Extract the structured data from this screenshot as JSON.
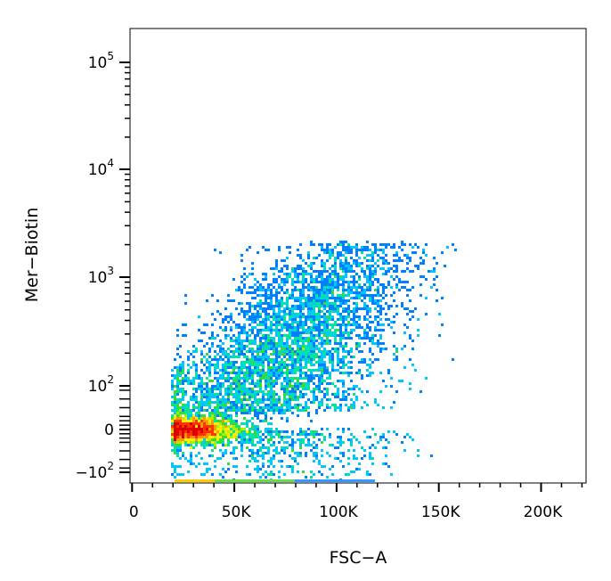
{
  "chart_data": {
    "type": "scatter",
    "style": "density-dot-plot",
    "xlabel": "FSC−A",
    "ylabel": "Mer−Biotin",
    "x_scale": "linear",
    "y_scale": "biexponential",
    "xlim": [
      -1000,
      222000
    ],
    "ylim": [
      -150,
      200000
    ],
    "x_ticks": [
      {
        "value": 0,
        "label": "0"
      },
      {
        "value": 50000,
        "label": "50K"
      },
      {
        "value": 100000,
        "label": "100K"
      },
      {
        "value": 150000,
        "label": "150K"
      },
      {
        "value": 200000,
        "label": "200K"
      }
    ],
    "y_ticks": [
      {
        "value": -100,
        "label": "−10",
        "sup": "2"
      },
      {
        "value": 0,
        "label": "0",
        "sup": ""
      },
      {
        "value": 100,
        "label": "10",
        "sup": "2"
      },
      {
        "value": 1000,
        "label": "10",
        "sup": "3"
      },
      {
        "value": 10000,
        "label": "10",
        "sup": "4"
      },
      {
        "value": 100000,
        "label": "10",
        "sup": "5"
      }
    ],
    "grid": false,
    "legend": "none",
    "colormap": [
      "#0000ff",
      "#0080ff",
      "#00c8ff",
      "#00e6a0",
      "#33dd33",
      "#aaee00",
      "#ffee00",
      "#ff9900",
      "#ff3300",
      "#dd0000"
    ],
    "populations": [
      {
        "x_center": 30000,
        "y_center": 0,
        "x_spread": 15000,
        "y_spread": 15,
        "density": "high",
        "count": 4500
      },
      {
        "x_center": 85000,
        "y_center": 250,
        "x_spread": 28000,
        "y_spread": 300,
        "density": "medium",
        "count": 3500
      },
      {
        "x_center": 65000,
        "y_center": 40,
        "x_spread": 30000,
        "y_spread": 60,
        "density": "medium",
        "count": 3000
      }
    ],
    "x_range_data": [
      20000,
      160000
    ],
    "y_range_data": [
      -150,
      2100
    ]
  }
}
